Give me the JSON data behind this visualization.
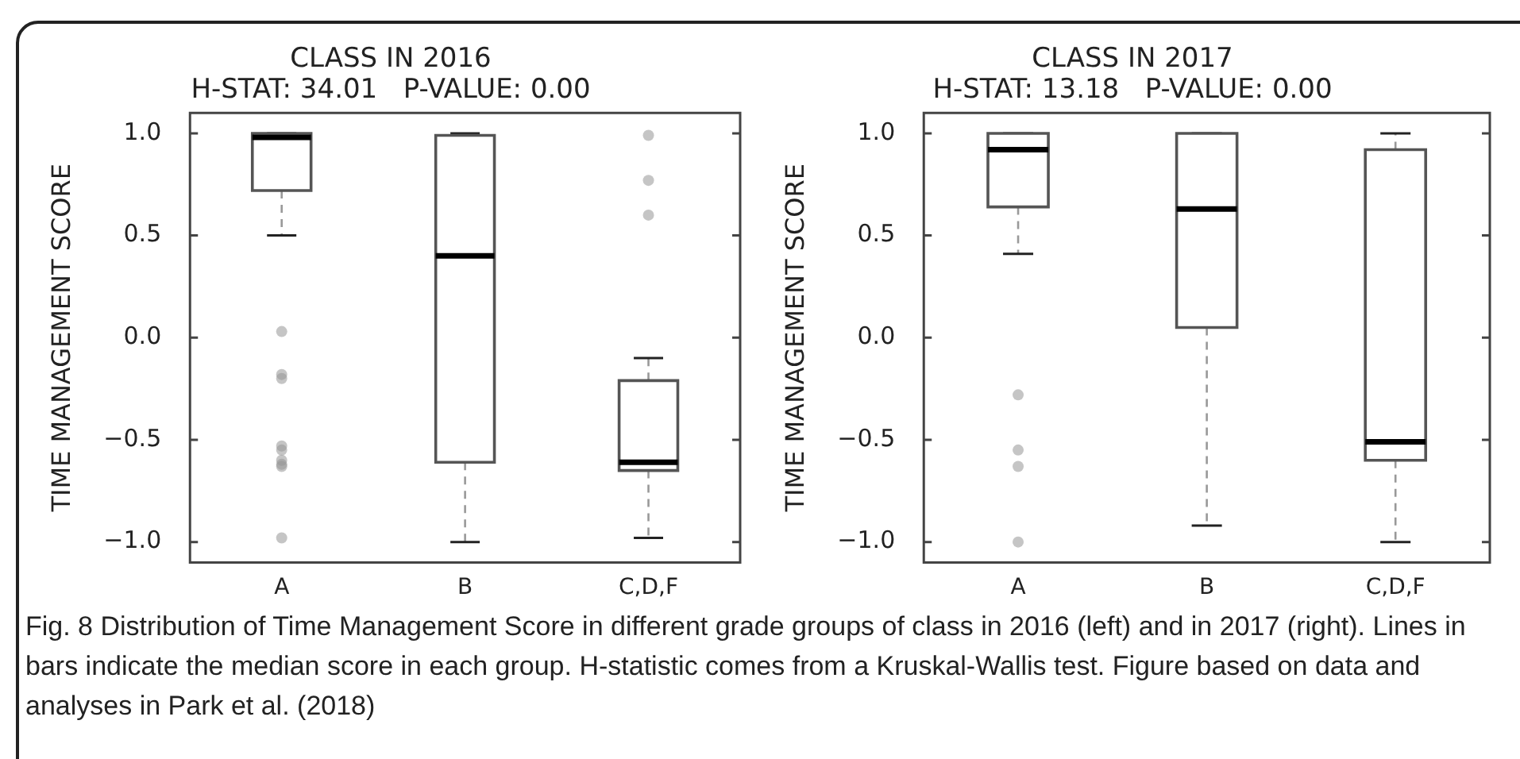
{
  "chart_data": [
    {
      "type": "box",
      "title": "CLASS IN 2016",
      "subtitle": "H-STAT: 34.01   P-VALUE: 0.00",
      "ylabel": "TIME MANAGEMENT SCORE",
      "categories": [
        "A",
        "B",
        "C,D,F"
      ],
      "boxes": [
        {
          "low": 0.5,
          "q1": 0.72,
          "median": 0.98,
          "q3": 1.0,
          "high": 1.0,
          "outliers": [
            0.03,
            -0.18,
            -0.2,
            -0.53,
            -0.55,
            -0.6,
            -0.62,
            -0.63,
            -0.98
          ]
        },
        {
          "low": -1.0,
          "q1": -0.61,
          "median": 0.4,
          "q3": 0.99,
          "high": 1.0
        },
        {
          "low": -0.98,
          "q1": -0.65,
          "median": -0.61,
          "q3": -0.21,
          "high": -0.1,
          "outliers": [
            0.6,
            0.77,
            0.99
          ]
        }
      ],
      "ylim": [
        -1.1,
        1.1
      ],
      "yticks": [
        {
          "value": -1,
          "label": "−1.0"
        },
        {
          "value": -0.5,
          "label": "−0.5"
        },
        {
          "value": 0,
          "label": "0.0"
        },
        {
          "value": 0.5,
          "label": "0.5"
        },
        {
          "value": 1,
          "label": "1.0"
        }
      ],
      "annotations": [
        "Fig. 8 Distribution of Time Management Score in different grade groups of class in 2016 (left) and in 2017 (right). Lines in bars indicate the median score in each group. H-statistic comes from a Kruskal-Wallis test. Figure based on data and analyses in Park et al. (2018)"
      ]
    },
    {
      "type": "box",
      "title": "CLASS IN 2017",
      "subtitle": "H-STAT: 13.18   P-VALUE: 0.00",
      "ylabel": "TIME MANAGEMENT SCORE",
      "categories": [
        "A",
        "B",
        "C,D,F"
      ],
      "boxes": [
        {
          "low": 0.41,
          "q1": 0.64,
          "median": 0.92,
          "q3": 1.0,
          "high": 1.0,
          "outliers": [
            -0.28,
            -0.55,
            -0.63,
            -1.0
          ]
        },
        {
          "low": -0.92,
          "q1": 0.05,
          "median": 0.63,
          "q3": 1.0,
          "high": 1.0
        },
        {
          "low": -1.0,
          "q1": -0.6,
          "median": -0.51,
          "q3": 0.92,
          "high": 1.0
        }
      ],
      "ylim": [
        -1.1,
        1.1
      ],
      "yticks": [
        {
          "value": -1,
          "label": "−1.0"
        },
        {
          "value": -0.5,
          "label": "−0.5"
        },
        {
          "value": 0,
          "label": "0.0"
        },
        {
          "value": 0.5,
          "label": "0.5"
        },
        {
          "value": 1,
          "label": "1.0"
        }
      ]
    }
  ]
}
